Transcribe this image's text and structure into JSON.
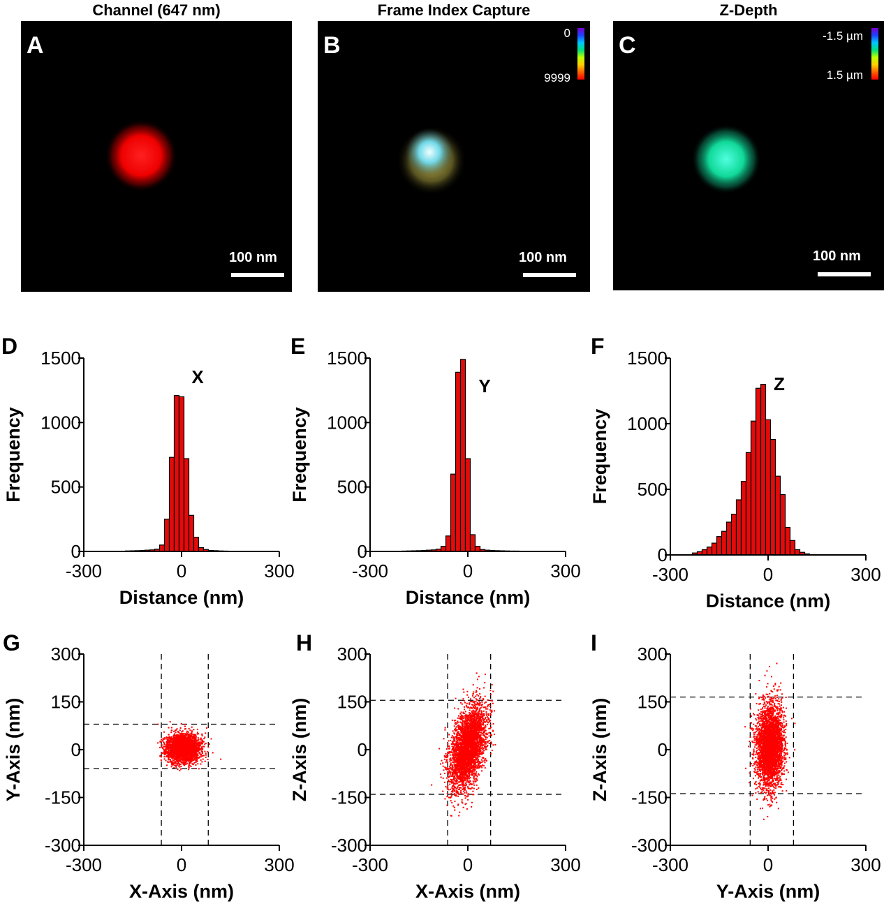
{
  "panels_top": [
    {
      "letter": "A",
      "title": "Channel (647 nm)",
      "scale_label": "100 nm",
      "colorbar": null,
      "blob_colors": [
        "#ff1a1a",
        "#e60000"
      ]
    },
    {
      "letter": "B",
      "title": "Frame Index Capture",
      "scale_label": "100 nm",
      "colorbar": {
        "top_label": "0",
        "bottom_label": "9999"
      },
      "blob_colors": [
        "#e8ffff",
        "#58c8d8",
        "#c8c040"
      ]
    },
    {
      "letter": "C",
      "title": "Z-Depth",
      "scale_label": "100 nm",
      "colorbar": {
        "top_label": "-1.5 µm",
        "bottom_label": "1.5 µm"
      },
      "blob_colors": [
        "#40ffd0",
        "#10c890"
      ]
    }
  ],
  "colors": {
    "bar_fill": "#e30b0b",
    "point": "#ff0000",
    "image_bg": "#000000"
  },
  "chart_data": [
    {
      "letter": "D",
      "type": "bar",
      "series_label": "X",
      "xlabel": "Distance (nm)",
      "ylabel": "Frequency",
      "xlim": [
        -300,
        300
      ],
      "ylim": [
        0,
        1500
      ],
      "xticks": [
        -300,
        0,
        300
      ],
      "yticks": [
        0,
        500,
        1000,
        1500
      ],
      "bin_width": 15,
      "x": [
        -165,
        -150,
        -135,
        -120,
        -105,
        -90,
        -75,
        -60,
        -45,
        -30,
        -15,
        0,
        15,
        30,
        45,
        60,
        75,
        90,
        105,
        120,
        135,
        150
      ],
      "values": [
        4,
        5,
        6,
        8,
        10,
        12,
        18,
        50,
        250,
        730,
        1210,
        1200,
        720,
        280,
        110,
        30,
        15,
        8,
        6,
        4,
        3,
        2
      ]
    },
    {
      "letter": "E",
      "type": "bar",
      "series_label": "Y",
      "xlabel": "Distance (nm)",
      "ylabel": "Frequency",
      "xlim": [
        -300,
        300
      ],
      "ylim": [
        0,
        1500
      ],
      "xticks": [
        -300,
        0,
        300
      ],
      "yticks": [
        0,
        500,
        1000,
        1500
      ],
      "bin_width": 15,
      "x": [
        -195,
        -180,
        -165,
        -150,
        -135,
        -120,
        -105,
        -90,
        -75,
        -60,
        -45,
        -30,
        -15,
        0,
        15,
        30,
        45,
        60,
        75,
        90,
        105,
        120,
        135,
        150,
        165,
        180
      ],
      "values": [
        3,
        4,
        5,
        6,
        8,
        10,
        12,
        18,
        40,
        120,
        600,
        1390,
        1490,
        720,
        130,
        40,
        15,
        10,
        8,
        6,
        5,
        4,
        3,
        3,
        2,
        2
      ]
    },
    {
      "letter": "F",
      "type": "bar",
      "series_label": "Z",
      "xlabel": "Distance (nm)",
      "ylabel": "Frequency",
      "xlim": [
        -300,
        300
      ],
      "ylim": [
        0,
        1500
      ],
      "xticks": [
        -300,
        0,
        300
      ],
      "yticks": [
        0,
        500,
        1000,
        1500
      ],
      "bin_width": 15,
      "x": [
        -225,
        -210,
        -195,
        -180,
        -165,
        -150,
        -135,
        -120,
        -105,
        -90,
        -75,
        -60,
        -45,
        -30,
        -15,
        0,
        15,
        30,
        45,
        60,
        75,
        90,
        105,
        120
      ],
      "values": [
        15,
        25,
        40,
        60,
        90,
        140,
        180,
        250,
        310,
        420,
        560,
        780,
        1020,
        1270,
        1300,
        1030,
        880,
        600,
        460,
        210,
        110,
        40,
        20,
        8
      ]
    },
    {
      "letter": "G",
      "type": "scatter",
      "xlabel": "X-Axis (nm)",
      "ylabel": "Y-Axis (nm)",
      "xlim": [
        -300,
        300
      ],
      "ylim": [
        -300,
        300
      ],
      "xticks": [
        -300,
        0,
        300
      ],
      "yticks": [
        -300,
        -150,
        0,
        150,
        300
      ],
      "vlines": [
        -62,
        82
      ],
      "hlines": [
        80,
        -60
      ],
      "cloud": {
        "center": [
          5,
          5
        ],
        "sd": [
          25,
          22
        ],
        "corr": 0,
        "n": 3000,
        "seed": 11
      }
    },
    {
      "letter": "H",
      "type": "scatter",
      "xlabel": "X-Axis (nm)",
      "ylabel": "Z-Axis (nm)",
      "xlim": [
        -300,
        300
      ],
      "ylim": [
        -300,
        300
      ],
      "xticks": [
        -300,
        0,
        300
      ],
      "yticks": [
        -300,
        -150,
        0,
        150,
        300
      ],
      "vlines": [
        -62,
        70
      ],
      "hlines": [
        155,
        -140
      ],
      "cloud": {
        "center": [
          0,
          5
        ],
        "sd": [
          28,
          65
        ],
        "corr": 0.45,
        "n": 3500,
        "seed": 23
      }
    },
    {
      "letter": "I",
      "type": "scatter",
      "xlabel": "Y-Axis (nm)",
      "ylabel": "Z-Axis (nm)",
      "xlim": [
        -300,
        300
      ],
      "ylim": [
        -300,
        300
      ],
      "xticks": [
        -300,
        0,
        300
      ],
      "yticks": [
        -300,
        -150,
        0,
        150,
        300
      ],
      "vlines": [
        -55,
        78
      ],
      "hlines": [
        165,
        -138
      ],
      "cloud": {
        "center": [
          5,
          10
        ],
        "sd": [
          20,
          65
        ],
        "corr": 0.05,
        "n": 3500,
        "seed": 37
      }
    }
  ]
}
